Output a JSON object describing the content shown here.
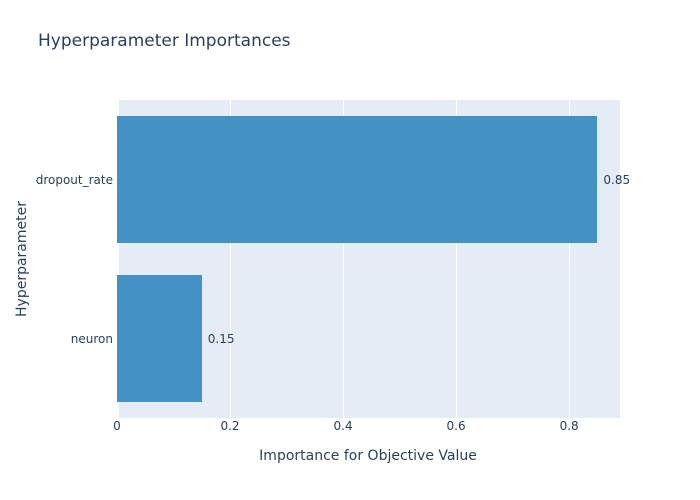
{
  "title": "Hyperparameter Importances",
  "colors": {
    "bar": "#4292c6",
    "plot_background": "#e5ecf6",
    "gridline": "#ffffff",
    "text": "#2a3f5f",
    "paper_background": "#ffffff"
  },
  "chart_data": {
    "type": "bar",
    "orientation": "horizontal",
    "title": "Hyperparameter Importances",
    "xlabel": "Importance for Objective Value",
    "ylabel": "Hyperparameter",
    "categories": [
      "dropout_rate",
      "neuron"
    ],
    "values": [
      0.85,
      0.15
    ],
    "value_labels": [
      "0.85",
      "0.15"
    ],
    "xlim": [
      0,
      0.89
    ],
    "xticks": [
      0,
      0.2,
      0.4,
      0.6,
      0.8
    ],
    "xtick_labels": [
      "0",
      "0.2",
      "0.4",
      "0.6",
      "0.8"
    ],
    "grid": true,
    "legend": false,
    "bar_gap_fraction": 0.2
  }
}
